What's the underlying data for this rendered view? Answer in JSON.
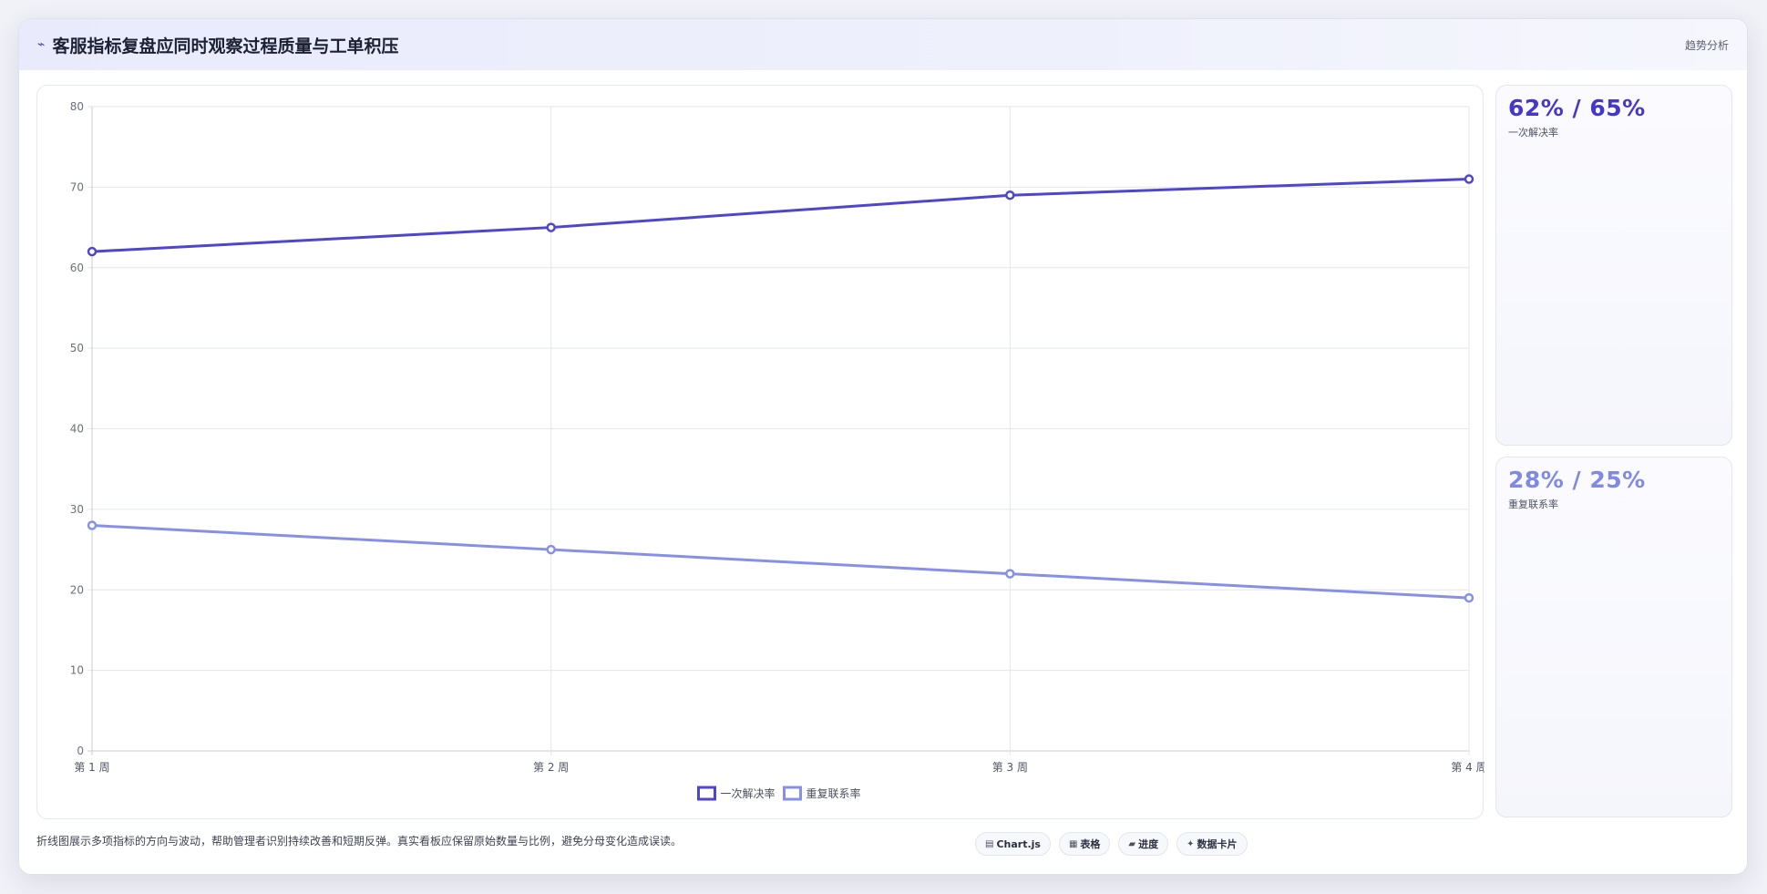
{
  "header": {
    "icon": "trend-icon",
    "title": "客服指标复盘应同时观察过程质量与工单积压",
    "tag": "趋势分析"
  },
  "chart_data": {
    "type": "line",
    "categories": [
      "第 1 周",
      "第 2 周",
      "第 3 周",
      "第 4 周"
    ],
    "series": [
      {
        "name": "一次解决率",
        "values": [
          62,
          65,
          69,
          71
        ],
        "color": "#4f46cf"
      },
      {
        "name": "重复联系率",
        "values": [
          28,
          25,
          22,
          19
        ],
        "color": "#8790e8"
      }
    ],
    "ylim": [
      0,
      80
    ],
    "yticks": [
      0,
      10,
      20,
      30,
      40,
      50,
      60,
      70,
      80
    ],
    "grid": true,
    "legend": "bottom"
  },
  "side_cards": [
    {
      "value": "62% / 65%",
      "label": "一次解决率",
      "color": "#4338ca"
    },
    {
      "value": "28% / 25%",
      "label": "重复联系率",
      "color": "#7f89e6"
    }
  ],
  "footer": {
    "note": "折线图展示多项指标的方向与波动，帮助管理者识别持续改善和短期反弹。真实看板应保留原始数量与比例，避免分母变化造成误读。",
    "chips": [
      {
        "icon": "chart-icon",
        "glyph": "▤",
        "label": "Chart.js"
      },
      {
        "icon": "table-icon",
        "glyph": "▦",
        "label": "表格"
      },
      {
        "icon": "progress-icon",
        "glyph": "▰",
        "label": "进度"
      },
      {
        "icon": "card-icon",
        "glyph": "✦",
        "label": "数据卡片"
      }
    ]
  }
}
